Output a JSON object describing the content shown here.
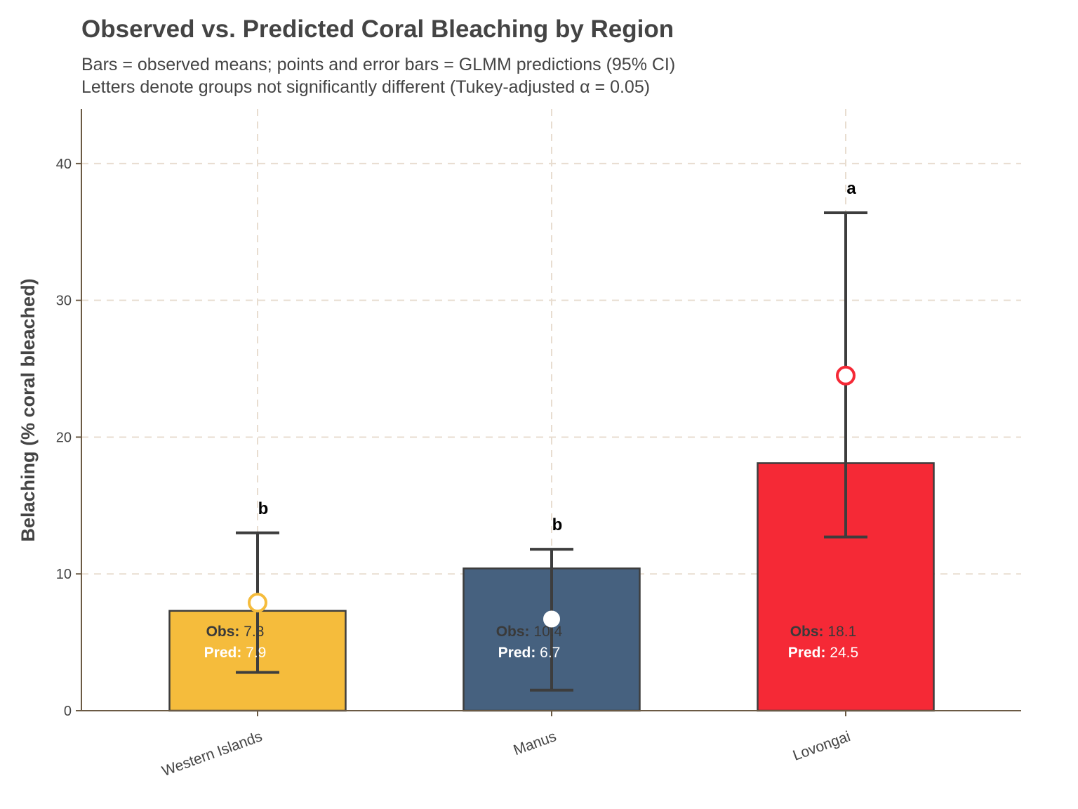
{
  "chart_data": {
    "type": "bar",
    "title": "Observed vs. Predicted Coral Bleaching by Region",
    "subtitle_lines": [
      "Bars = observed means; points and error bars = GLMM predictions (95% CI)",
      "Letters denote groups not significantly different (Tukey-adjusted α = 0.05)"
    ],
    "xlabel": "",
    "ylabel": "Belaching (% coral bleached)",
    "ylim": [
      0,
      44
    ],
    "yticks": [
      0,
      10,
      20,
      30,
      40
    ],
    "grid": true,
    "categories": [
      "Western Islands",
      "Manus",
      "Lovongai"
    ],
    "observed": [
      7.3,
      10.4,
      18.1
    ],
    "predicted": [
      7.9,
      6.7,
      24.5
    ],
    "ci_lower": [
      2.8,
      1.5,
      12.7
    ],
    "ci_upper": [
      13.0,
      11.8,
      36.4
    ],
    "letters": [
      "b",
      "b",
      "a"
    ],
    "obs_label": "Obs:",
    "pred_label": "Pred:",
    "obs_text": [
      "7.3",
      "10.4",
      "18.1"
    ],
    "pred_text": [
      "7.9",
      "6.7",
      "24.5"
    ],
    "colors": {
      "bars": [
        "#F5BC3C",
        "#46617F",
        "#F52936"
      ],
      "point_fill": [
        "#FFFFFF",
        "#FFFFFF",
        "#FFFFFF"
      ],
      "point_stroke": [
        "#F5BC3C",
        "#FFFFFF",
        "#F52936"
      ],
      "errorbar": "#3D3D3D",
      "bar_outline": "#3D3D3D",
      "grid": "#E8DDD0",
      "axis": "#6B5A44",
      "text": "#444444"
    }
  }
}
